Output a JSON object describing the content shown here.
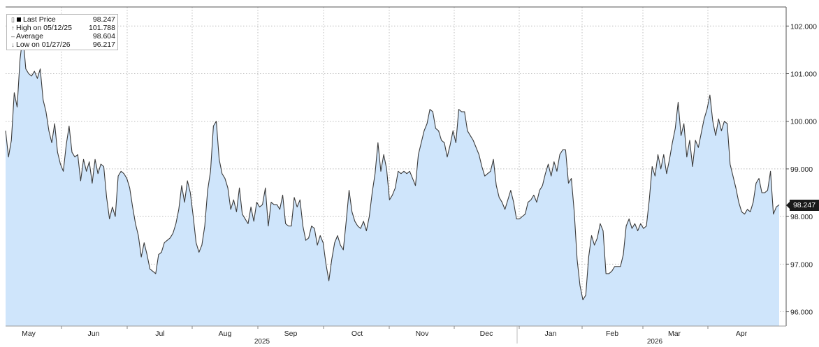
{
  "legend": {
    "last_label": "Last Price",
    "last_value": "98.247",
    "high_label": "High on 05/12/25",
    "high_value": "101.788",
    "avg_label": "Average",
    "avg_value": "98.604",
    "low_label": "Low on 01/27/26",
    "low_value": "96.217"
  },
  "price_tag": "98.247",
  "chart_data": {
    "type": "area",
    "title": "",
    "xlabel": "",
    "ylabel": "",
    "ylim": [
      95.7,
      102.4
    ],
    "y_ticks": [
      "96.000",
      "97.000",
      "98.000",
      "99.000",
      "100.000",
      "101.000",
      "102.000"
    ],
    "x_month_labels": [
      "May",
      "Jun",
      "Jul",
      "Aug",
      "Sep",
      "Oct",
      "Nov",
      "Dec",
      "Jan",
      "Feb",
      "Mar",
      "Apr"
    ],
    "x_year_labels": [
      "2025",
      "2026"
    ],
    "grid": true,
    "fill_color": "#cfe5fb",
    "line_color": "#3a3a3a",
    "series": [
      {
        "values": [
          99.8,
          99.25,
          99.6,
          100.6,
          100.3,
          101.3,
          101.8,
          101.1,
          101.0,
          100.95,
          101.05,
          100.9,
          101.1,
          100.45,
          100.2,
          99.8,
          99.55,
          99.95,
          99.35,
          99.1,
          98.95,
          99.5,
          99.9,
          99.35,
          99.25,
          99.3,
          98.75,
          99.2,
          98.95,
          99.15,
          98.7,
          99.2,
          98.9,
          99.1,
          99.05,
          98.4,
          97.95,
          98.2,
          98.0,
          98.85,
          98.95,
          98.9,
          98.8,
          98.6,
          98.2,
          97.85,
          97.6,
          97.15,
          97.45,
          97.2,
          96.9,
          96.85,
          96.8,
          97.2,
          97.25,
          97.45,
          97.5,
          97.55,
          97.65,
          97.85,
          98.15,
          98.65,
          98.3,
          98.75,
          98.5,
          98.0,
          97.45,
          97.25,
          97.4,
          97.8,
          98.55,
          98.95,
          99.9,
          100.0,
          99.2,
          98.9,
          98.8,
          98.6,
          98.15,
          98.35,
          98.1,
          98.6,
          98.05,
          97.95,
          97.85,
          98.2,
          97.9,
          98.3,
          98.2,
          98.25,
          98.6,
          97.8,
          98.3,
          98.25,
          98.25,
          98.15,
          98.45,
          97.85,
          97.8,
          97.8,
          98.4,
          98.2,
          98.35,
          97.8,
          97.5,
          97.55,
          97.8,
          97.75,
          97.4,
          97.6,
          97.45,
          97.0,
          96.65,
          97.1,
          97.45,
          97.6,
          97.4,
          97.3,
          97.9,
          98.55,
          98.1,
          97.9,
          97.8,
          97.75,
          97.9,
          97.7,
          98.0,
          98.5,
          98.9,
          99.55,
          98.95,
          99.3,
          99.0,
          98.35,
          98.45,
          98.6,
          98.95,
          98.9,
          98.95,
          98.9,
          98.95,
          98.8,
          98.65,
          99.3,
          99.55,
          99.8,
          99.95,
          100.25,
          100.2,
          99.85,
          99.8,
          99.6,
          99.55,
          99.25,
          99.5,
          99.8,
          99.55,
          100.25,
          100.2,
          100.2,
          99.8,
          99.7,
          99.6,
          99.45,
          99.3,
          99.05,
          98.85,
          98.9,
          98.95,
          99.2,
          98.65,
          98.4,
          98.3,
          98.15,
          98.35,
          98.55,
          98.3,
          97.95,
          97.95,
          98.0,
          98.05,
          98.3,
          98.35,
          98.45,
          98.3,
          98.55,
          98.65,
          98.9,
          99.1,
          98.85,
          99.15,
          98.95,
          99.3,
          99.4,
          99.4,
          98.7,
          98.8,
          98.1,
          97.1,
          96.55,
          96.25,
          96.35,
          97.15,
          97.6,
          97.4,
          97.55,
          97.85,
          97.7,
          96.8,
          96.8,
          96.85,
          96.95,
          96.95,
          96.95,
          97.2,
          97.8,
          97.95,
          97.75,
          97.85,
          97.7,
          97.85,
          97.75,
          97.8,
          98.35,
          99.05,
          98.85,
          99.3,
          99.0,
          99.3,
          98.9,
          99.2,
          99.55,
          99.85,
          100.4,
          99.7,
          99.95,
          99.25,
          99.6,
          99.05,
          99.6,
          99.45,
          99.75,
          100.05,
          100.25,
          100.55,
          100.0,
          99.7,
          100.05,
          99.8,
          100.0,
          99.95,
          99.1,
          98.85,
          98.6,
          98.3,
          98.1,
          98.05,
          98.15,
          98.1,
          98.3,
          98.7,
          98.8,
          98.5,
          98.5,
          98.55,
          98.95,
          98.05,
          98.2,
          98.247
        ]
      }
    ]
  }
}
